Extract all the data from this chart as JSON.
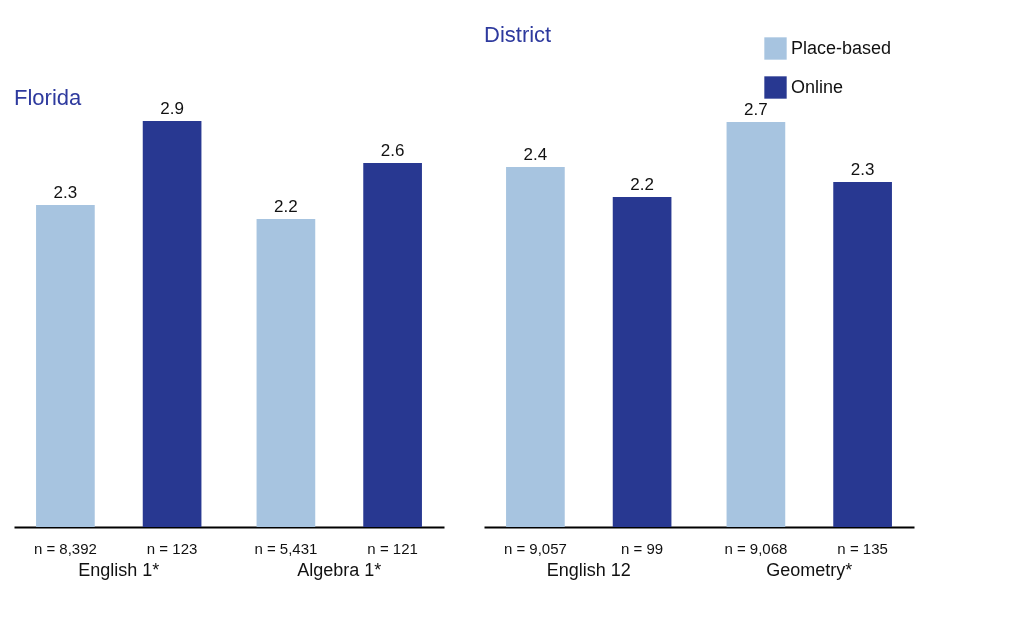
{
  "chart_data": [
    {
      "type": "bar",
      "title": "Florida",
      "categories": [
        "English 1*",
        "Algebra 1*"
      ],
      "series": [
        {
          "color": "#a7c4e0",
          "values": [
            2.3,
            2.2
          ]
        },
        {
          "color": "#283891",
          "values": [
            2.9,
            2.6
          ]
        }
      ],
      "data_labels": true,
      "annotations": [
        "n = 8,392",
        "n = 123",
        "n = 5,431",
        "n = 121"
      ]
    },
    {
      "type": "bar",
      "title": "District",
      "categories": [
        "English 12",
        "Geometry*"
      ],
      "series": [
        {
          "name": "Place-based",
          "color": "#a7c4e0",
          "values": [
            2.4,
            2.7
          ]
        },
        {
          "name": "Online",
          "color": "#283891",
          "values": [
            2.2,
            2.3
          ]
        }
      ],
      "data_labels": true,
      "legend": "top right",
      "annotations": [
        "n = 9,057",
        "n = 99",
        "n = 9,068",
        "n = 135"
      ]
    }
  ]
}
